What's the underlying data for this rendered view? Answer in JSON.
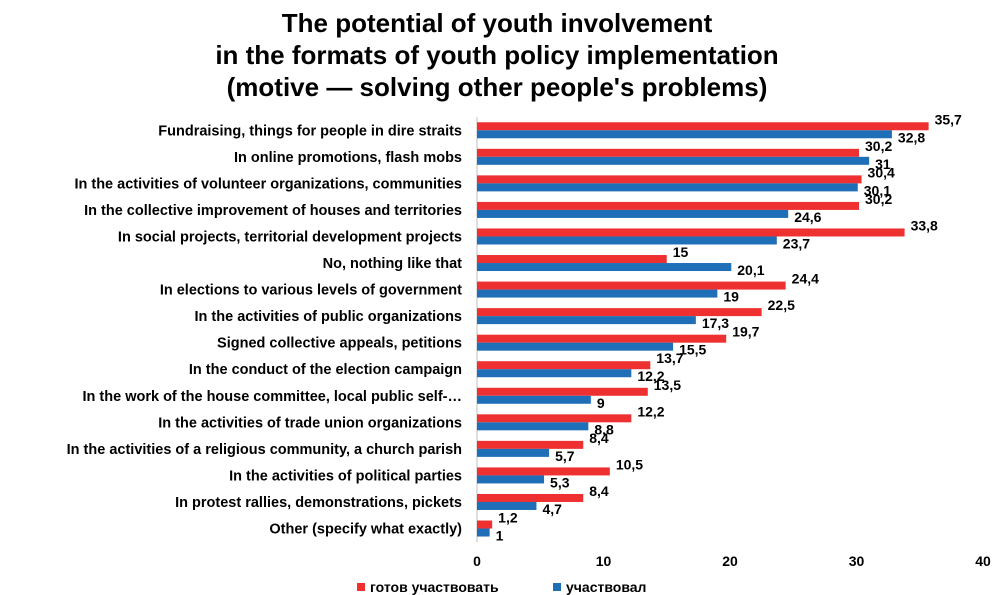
{
  "chart_data": {
    "type": "bar",
    "orientation": "horizontal",
    "title_lines": [
      "The potential of youth involvement",
      "in the formats of youth policy implementation",
      "(motive — solving other people's problems)"
    ],
    "categories": [
      "Fundraising, things for people in dire straits",
      "In online promotions, flash mobs",
      "In the activities of volunteer organizations, communities",
      "In the collective improvement of houses and territories",
      "In social projects, territorial development projects",
      "No, nothing like that",
      "In elections to various levels of government",
      "In the activities of public organizations",
      "Signed collective appeals, petitions",
      "In the conduct of the election campaign",
      "In the work of the house committee, local public self-…",
      "In the activities of trade union organizations",
      "In the activities of a religious community, a church parish",
      "In the activities of political parties",
      "In protest rallies, demonstrations, pickets",
      "Other (specify what exactly)"
    ],
    "series": [
      {
        "name": "готов участвовать",
        "color": "#ee3030",
        "values": [
          35.7,
          30.2,
          30.4,
          30.2,
          33.8,
          15,
          24.4,
          22.5,
          19.7,
          13.7,
          13.5,
          12.2,
          8.4,
          10.5,
          8.4,
          1.2
        ],
        "labels": [
          "35,7",
          "30,2",
          "30,4",
          "30,2",
          "33,8",
          "15",
          "24,4",
          "22,5",
          "19,7",
          "13,7",
          "13,5",
          "12,2",
          "8,4",
          "10,5",
          "8,4",
          "1,2"
        ]
      },
      {
        "name": "участвовал",
        "color": "#1f6fb8",
        "values": [
          32.8,
          31,
          30.1,
          24.6,
          23.7,
          20.1,
          19,
          17.3,
          15.5,
          12.2,
          9,
          8.8,
          5.7,
          5.3,
          4.7,
          1
        ],
        "labels": [
          "32,8",
          "31",
          "30,1",
          "24,6",
          "23,7",
          "20,1",
          "19",
          "17,3",
          "15,5",
          "12,2",
          "9",
          "8,8",
          "5,7",
          "5,3",
          "4,7",
          "1"
        ]
      }
    ],
    "xlim": [
      0,
      40
    ],
    "xticks": [
      0,
      10,
      20,
      30,
      40
    ],
    "xtick_labels": [
      "0",
      "10",
      "20",
      "30",
      "40"
    ],
    "grid": false,
    "legend_position": "bottom-left"
  }
}
